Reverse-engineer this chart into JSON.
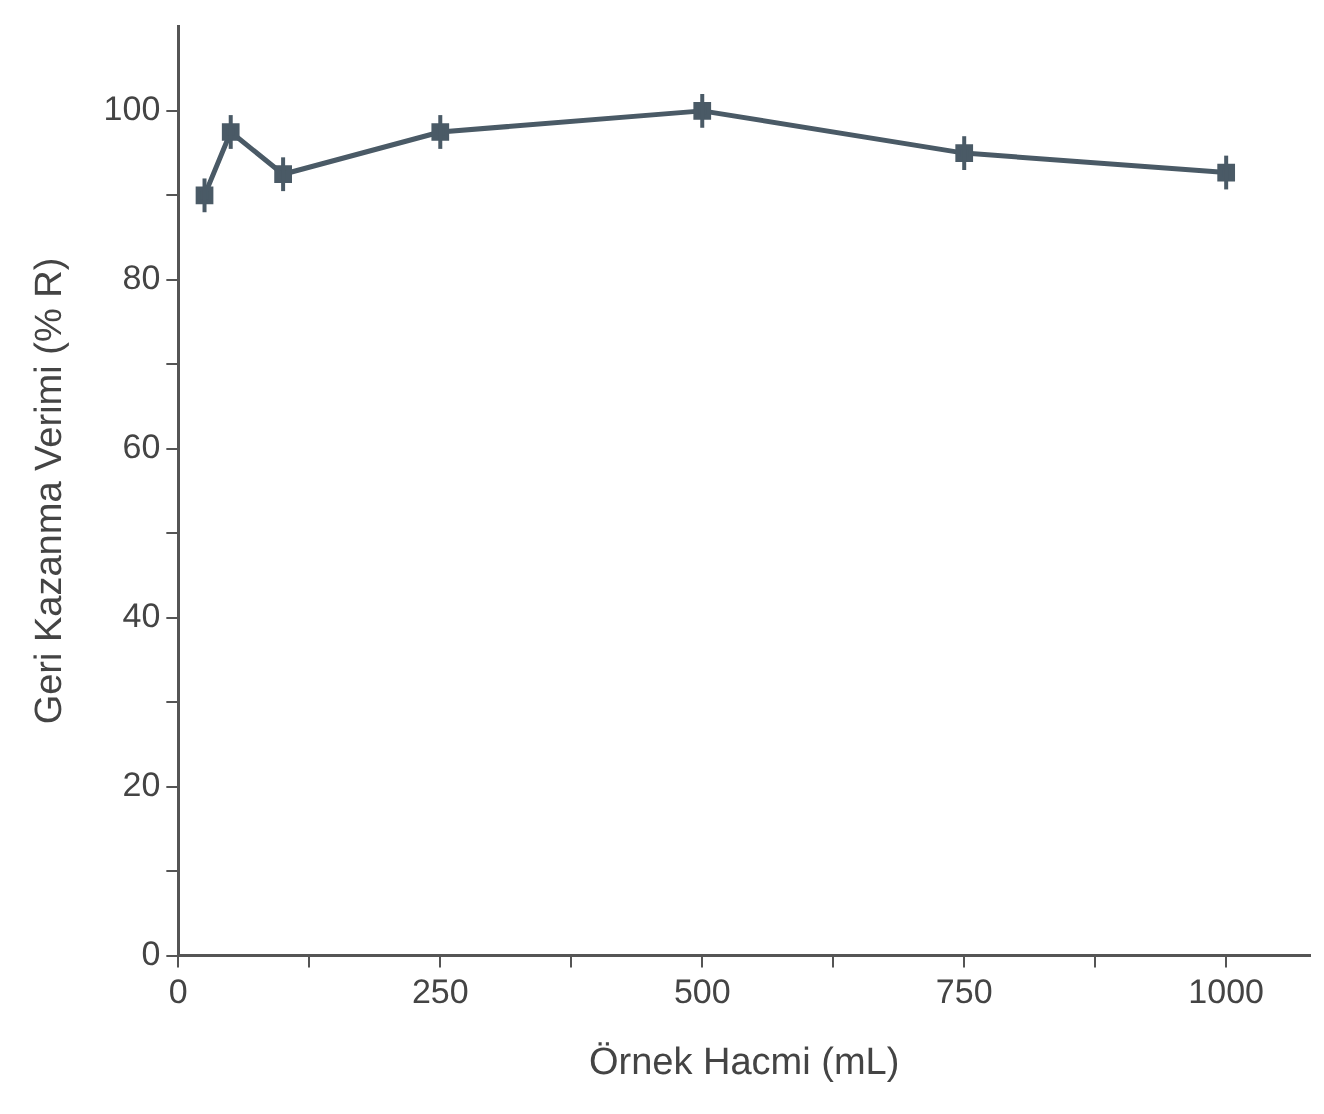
{
  "chart_data": {
    "type": "line",
    "xlabel": "Örnek Hacmi (mL)",
    "ylabel": "Geri Kazanma Verimi (% R)",
    "x": [
      25,
      50,
      100,
      250,
      500,
      750,
      1000
    ],
    "series": [
      {
        "color": "#4a5a66",
        "values": [
          90,
          97.5,
          92.5,
          97.5,
          100,
          95,
          92.7
        ],
        "errors": [
          2,
          2,
          2,
          2,
          2,
          2,
          2
        ]
      }
    ],
    "xlim": [
      0,
      1080
    ],
    "xticks": [
      0,
      {
        "value": 125,
        "label": null
      },
      250,
      {
        "value": 375,
        "label": null
      },
      500,
      {
        "value": 625,
        "label": null
      },
      750,
      {
        "value": 875,
        "label": null
      },
      1000
    ],
    "ylim": [
      0,
      110
    ],
    "yticks": [
      0,
      {
        "value": 10,
        "label": null
      },
      20,
      {
        "value": 30,
        "label": null
      },
      40,
      {
        "value": 50,
        "label": null
      },
      60,
      {
        "value": 70,
        "label": null
      },
      80,
      {
        "value": 90,
        "label": null
      },
      100
    ],
    "grid": false,
    "legend": false,
    "marker": "square",
    "line_style": "solid"
  }
}
